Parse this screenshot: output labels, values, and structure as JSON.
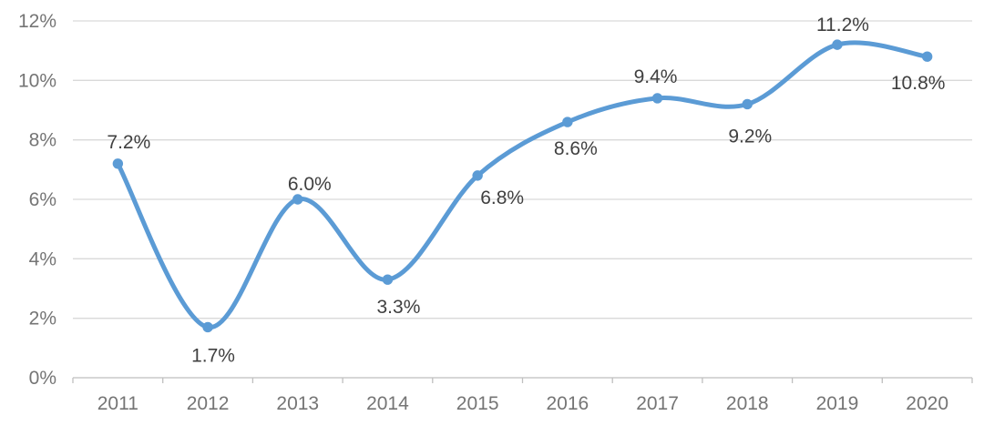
{
  "chart_data": {
    "type": "line",
    "title": "",
    "xlabel": "",
    "ylabel": "",
    "categories": [
      "2011",
      "2012",
      "2013",
      "2014",
      "2015",
      "2016",
      "2017",
      "2018",
      "2019",
      "2020"
    ],
    "series": [
      {
        "name": "percentage-series",
        "values": [
          7.2,
          1.7,
          6.0,
          3.3,
          6.8,
          8.6,
          9.4,
          9.2,
          11.2,
          10.8
        ],
        "point_labels": [
          "7.2%",
          "1.7%",
          "6.0%",
          "3.3%",
          "6.8%",
          "8.6%",
          "9.4%",
          "9.2%",
          "11.2%",
          "10.8%"
        ],
        "label_placement": [
          "above",
          "below",
          "above",
          "below",
          "below",
          "below",
          "above",
          "below",
          "above",
          "below"
        ],
        "label_offsets": [
          {
            "dx": 12,
            "dy": -24
          },
          {
            "dx": 6,
            "dy": 31
          },
          {
            "dx": 13,
            "dy": -17
          },
          {
            "dx": 12,
            "dy": 30
          },
          {
            "dx": 27,
            "dy": 24
          },
          {
            "dx": 9,
            "dy": 29
          },
          {
            "dx": -2,
            "dy": -24
          },
          {
            "dx": 3,
            "dy": 35
          },
          {
            "dx": 6,
            "dy": -22
          },
          {
            "dx": -10,
            "dy": 29
          }
        ]
      }
    ],
    "y_ticks": [
      "0%",
      "2%",
      "4%",
      "6%",
      "8%",
      "10%",
      "12%"
    ],
    "ylim": [
      0,
      12
    ],
    "y_tick_step": 2,
    "grid": true,
    "legend": false,
    "smooth": true,
    "marker": "circle",
    "colors": {
      "line": "#5B9BD5",
      "marker": "#5B9BD5",
      "gridline": "#D9D9D9",
      "axis_line": "#BFBFBF",
      "axis_text": "#757575",
      "data_label": "#404040",
      "background": "#FFFFFF"
    }
  }
}
